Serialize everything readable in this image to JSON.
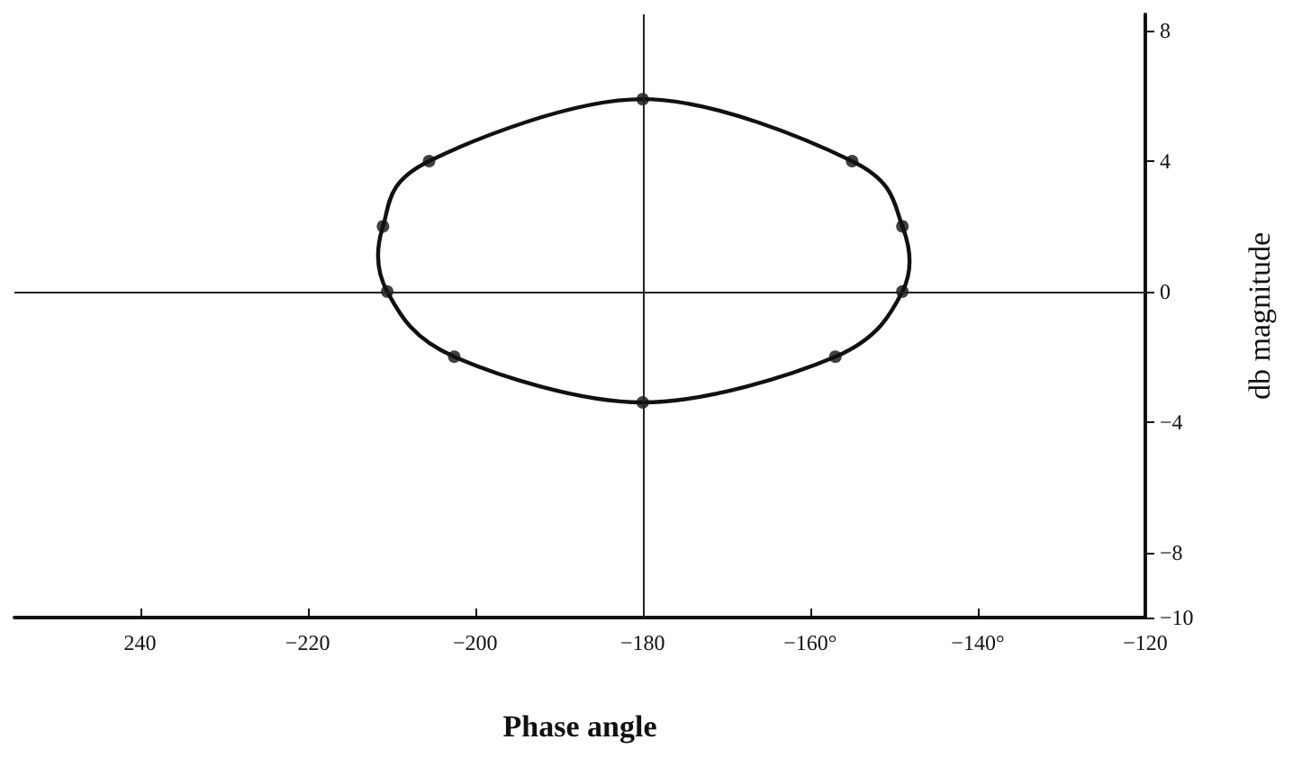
{
  "chart_data": {
    "type": "scatter",
    "xlabel": "Phase angle",
    "ylabel": "db magnitude",
    "x": [
      -180,
      -155,
      -149,
      -149,
      -157,
      -180,
      -202.5,
      -210.5,
      -211,
      -205.5
    ],
    "series": [
      {
        "color": "#111111",
        "values": [
          5.9,
          4,
          2,
          0,
          -2,
          -3.4,
          -2,
          0,
          2,
          4
        ]
      }
    ],
    "xlim": [
      -255,
      -120
    ],
    "xticks": [
      {
        "value": -240,
        "label": "240"
      },
      {
        "value": -220,
        "label": "−220"
      },
      {
        "value": -200,
        "label": "−200"
      },
      {
        "value": -180,
        "label": "−180"
      },
      {
        "value": -160,
        "label": "−160°"
      },
      {
        "value": -140,
        "label": "−140°"
      },
      {
        "value": -120,
        "label": "−120"
      }
    ],
    "ylim": [
      -10,
      8.5
    ],
    "yticks": [
      {
        "value": 8,
        "label": "8"
      },
      {
        "value": 4,
        "label": "4"
      },
      {
        "value": 0,
        "label": "0"
      },
      {
        "value": -4,
        "label": "−4"
      },
      {
        "value": -8,
        "label": "−8"
      },
      {
        "value": -10,
        "label": "−10"
      }
    ],
    "ref_lines": [
      {
        "axis": "x",
        "value": -180
      },
      {
        "axis": "y",
        "value": 0
      }
    ],
    "grid": false,
    "marker": "circle"
  }
}
